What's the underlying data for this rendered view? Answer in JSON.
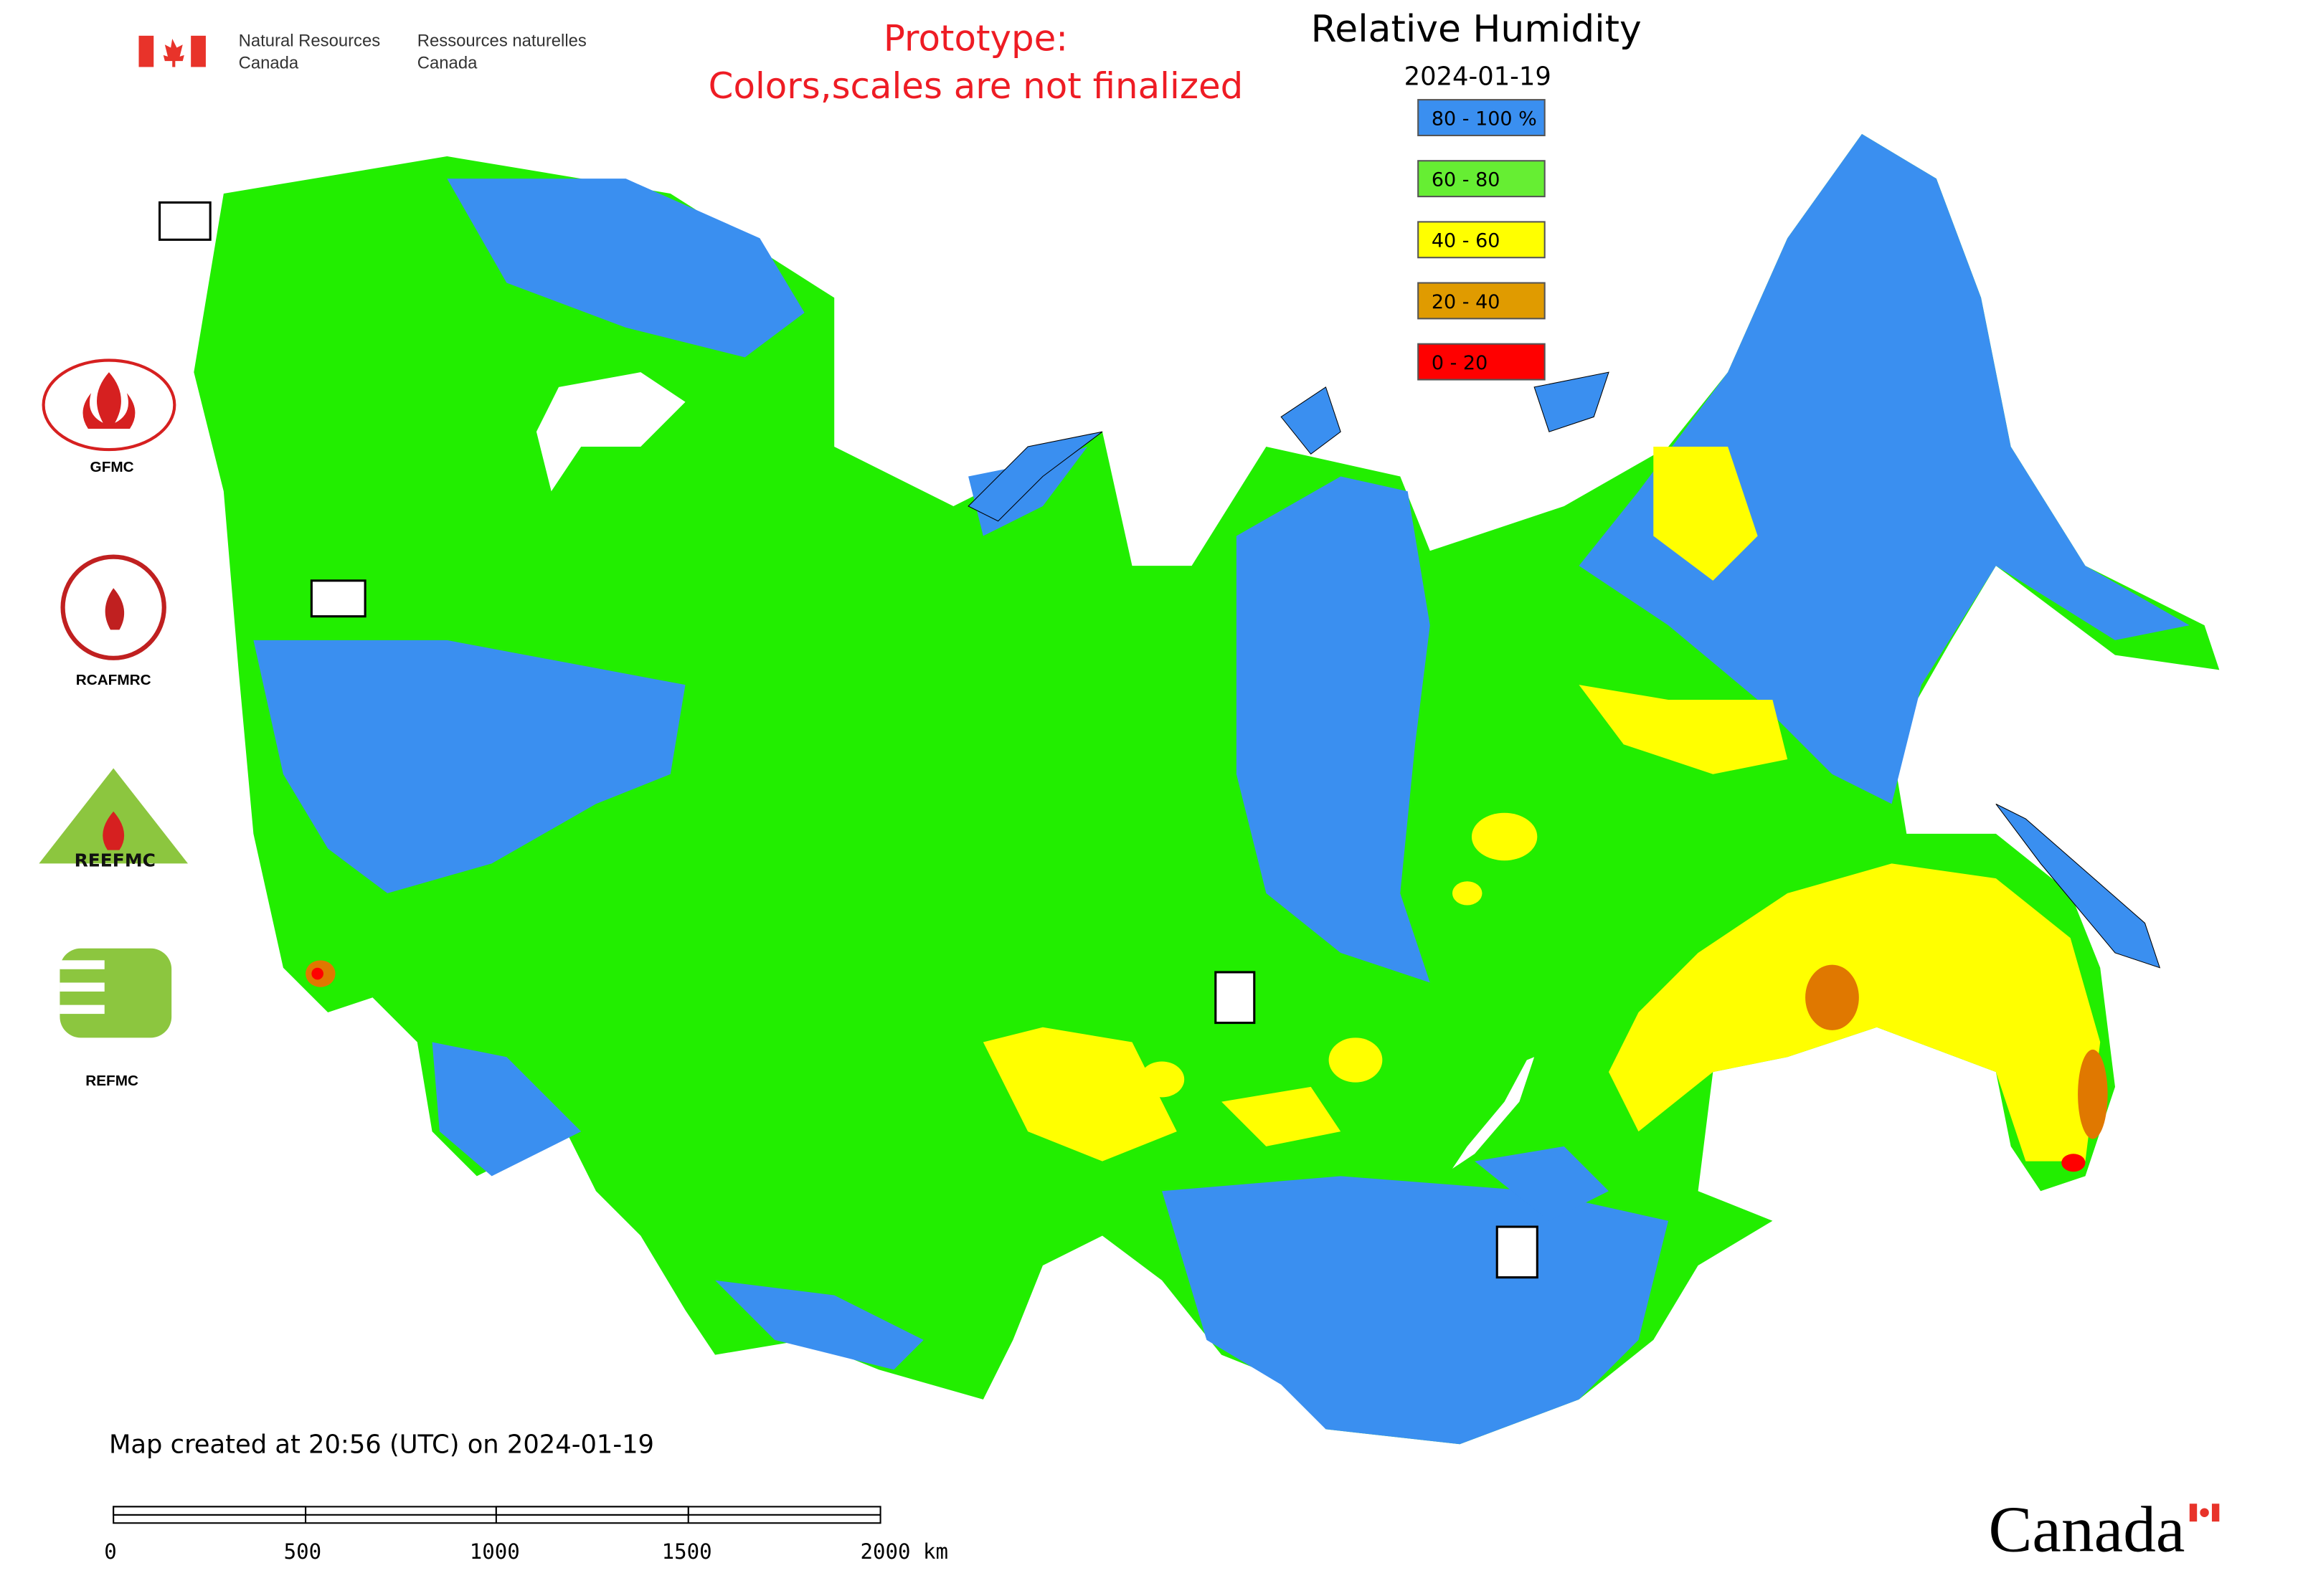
{
  "header": {
    "agency_en": [
      "Natural Resources",
      "Canada"
    ],
    "agency_fr": [
      "Ressources naturelles",
      "Canada"
    ],
    "notice": [
      "Prototype:",
      "Colors,scales are not finalized"
    ]
  },
  "map": {
    "title": "Relative Humidity",
    "date": "2024-01-19"
  },
  "legend": {
    "items": [
      {
        "label": "80 - 100 %",
        "color": "#3a8ff0"
      },
      {
        "label": "60 - 80",
        "color": "#66ee33"
      },
      {
        "label": "40 - 60",
        "color": "#ffff00"
      },
      {
        "label": "20 - 40",
        "color": "#e09b00"
      },
      {
        "label": "0 - 20",
        "color": "#ff0000"
      }
    ]
  },
  "logos": [
    "GFMC",
    "RCAFMRC",
    "REEFMC",
    "REFMC"
  ],
  "footer": {
    "created": "Map created at 20:56 (UTC) on 2024-01-19",
    "scale_labels": [
      "0",
      "500",
      "1000",
      "1500",
      "2000 km"
    ],
    "wordmark": "Canada"
  }
}
